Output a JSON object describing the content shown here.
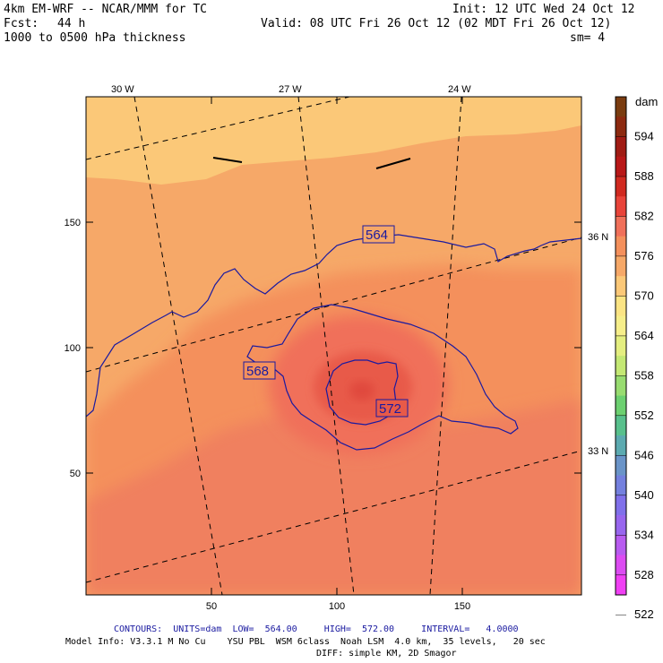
{
  "header": {
    "model": "4km EM-WRF -- NCAR/MMM for TC",
    "init": "Init: 12 UTC Wed 24 Oct 12",
    "fcst_label": "Fcst:",
    "fcst_value": "44 h",
    "valid": "Valid: 08 UTC Fri 26 Oct 12 (02 MDT Fri 26 Oct 12)",
    "field": "1000 to 0500 hPa thickness",
    "smoothing": "sm= 4"
  },
  "map": {
    "lon_labels": [
      "30 W",
      "27 W",
      "24 W"
    ],
    "lat_labels": [
      "36 N",
      "33 N"
    ],
    "x_ticks": [
      "50",
      "100",
      "150"
    ],
    "y_ticks": [
      "150",
      "100",
      "50"
    ],
    "contour_labels": [
      "564",
      "568",
      "572"
    ]
  },
  "colorbar": {
    "unit": "dam",
    "levels": [
      "594",
      "588",
      "582",
      "576",
      "570",
      "564",
      "558",
      "552",
      "546",
      "540",
      "534",
      "528",
      "522"
    ],
    "colors": [
      "#7a3c10",
      "#8c2a10",
      "#a01c14",
      "#b81818",
      "#d02a20",
      "#e8443a",
      "#f0705a",
      "#f4905c",
      "#f6a868",
      "#fbc878",
      "#fbe484",
      "#f6ee8a",
      "#e4ee80",
      "#c4e874",
      "#98dc70",
      "#6cd070",
      "#58c08c",
      "#5caab0",
      "#6a94c8",
      "#7480de",
      "#8070ea",
      "#9866ee",
      "#b85cf0",
      "#dc4cf2",
      "#f040f4"
    ]
  },
  "footer": {
    "contours": "CONTOURS:  UNITS=dam  LOW=  564.00     HIGH=  572.00     INTERVAL=   4.0000",
    "model_info": "Model Info: V3.3.1 M No Cu    YSU PBL  WSM 6class  Noah LSM  4.0 km,  35 levels,   20 sec",
    "diff": "DIFF: simple KM, 2D Smagor"
  }
}
